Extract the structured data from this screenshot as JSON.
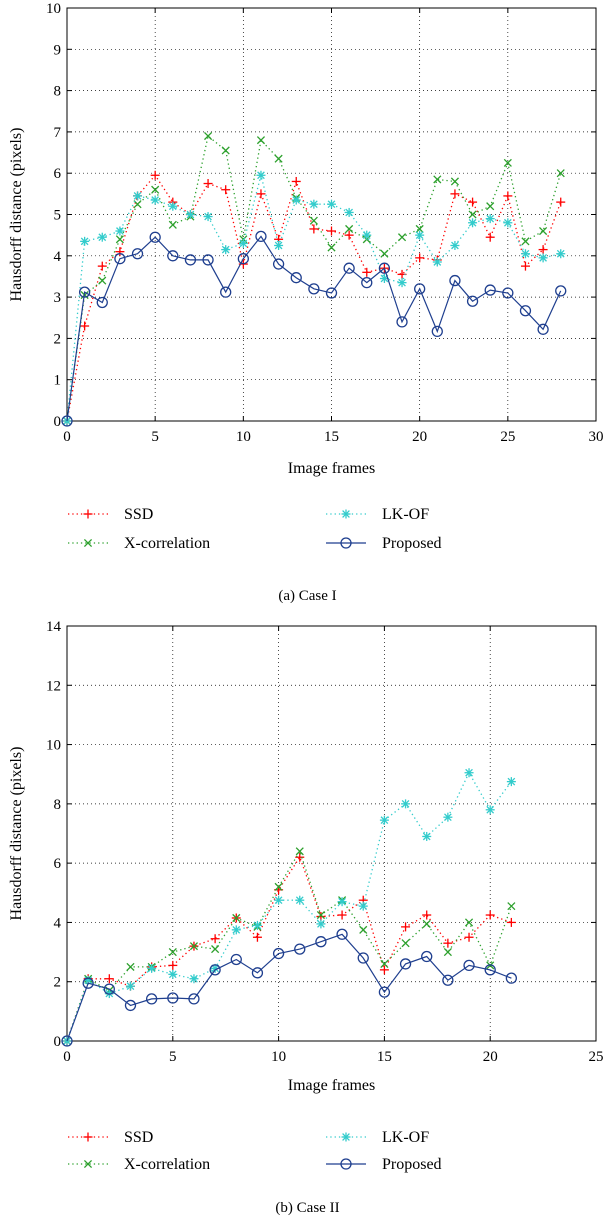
{
  "chart_data": [
    {
      "type": "line",
      "caption": "(a)  Case I",
      "xlabel": "Image frames",
      "ylabel": "Hausdorff distance (pixels)",
      "xlim": [
        0,
        30
      ],
      "ylim": [
        0,
        10
      ],
      "xticks": [
        0,
        5,
        10,
        15,
        20,
        25,
        30
      ],
      "yticks": [
        0,
        1,
        2,
        3,
        4,
        5,
        6,
        7,
        8,
        9,
        10
      ],
      "grid": true,
      "legend_position": "bottom",
      "x": [
        0,
        1,
        2,
        3,
        4,
        5,
        6,
        7,
        8,
        9,
        10,
        11,
        12,
        13,
        14,
        15,
        16,
        17,
        18,
        19,
        20,
        21,
        22,
        23,
        24,
        25,
        26,
        27,
        28
      ],
      "series": [
        {
          "name": "SSD",
          "color": "#ff0000",
          "marker": "plus",
          "line": "dotted",
          "values": [
            0,
            2.3,
            3.75,
            4.1,
            5.45,
            5.95,
            5.3,
            5.0,
            5.75,
            5.6,
            3.8,
            5.5,
            4.4,
            5.8,
            4.65,
            4.6,
            4.5,
            3.6,
            3.7,
            3.55,
            3.95,
            3.9,
            5.5,
            5.3,
            4.45,
            5.45,
            3.75,
            4.15,
            5.3
          ]
        },
        {
          "name": "X-correlation",
          "color": "#2ca02c",
          "marker": "x",
          "line": "dotted",
          "values": [
            0,
            3.05,
            3.4,
            4.4,
            5.25,
            5.6,
            4.75,
            4.95,
            6.9,
            6.55,
            4.4,
            6.8,
            6.35,
            5.4,
            4.85,
            4.2,
            4.65,
            4.4,
            4.05,
            4.45,
            4.65,
            5.85,
            5.8,
            5.0,
            5.2,
            6.25,
            4.35,
            4.6,
            6.0
          ]
        },
        {
          "name": "LK-OF",
          "color": "#33cccc",
          "marker": "star",
          "line": "dotted",
          "values": [
            0,
            4.35,
            4.45,
            4.6,
            5.45,
            5.35,
            5.2,
            5.0,
            4.95,
            4.15,
            4.3,
            5.95,
            4.25,
            5.35,
            5.25,
            5.25,
            5.05,
            4.5,
            3.45,
            3.35,
            4.5,
            3.85,
            4.25,
            4.8,
            4.9,
            4.8,
            4.05,
            3.95,
            4.05
          ]
        },
        {
          "name": "Proposed",
          "color": "#1f3f8f",
          "marker": "circle",
          "line": "solid",
          "values": [
            0,
            3.12,
            2.87,
            3.93,
            4.05,
            4.45,
            4.0,
            3.9,
            3.9,
            3.12,
            3.93,
            4.47,
            3.8,
            3.47,
            3.2,
            3.1,
            3.7,
            3.35,
            3.7,
            2.4,
            3.2,
            2.17,
            3.4,
            2.9,
            3.17,
            3.1,
            2.67,
            2.22,
            3.15
          ]
        }
      ]
    },
    {
      "type": "line",
      "caption": "(b)  Case II",
      "xlabel": "Image frames",
      "ylabel": "Hausdorff distance (pixels)",
      "xlim": [
        0,
        25
      ],
      "ylim": [
        0,
        14
      ],
      "xticks": [
        0,
        5,
        10,
        15,
        20,
        25
      ],
      "yticks": [
        0,
        2,
        4,
        6,
        8,
        10,
        12,
        14
      ],
      "grid": true,
      "legend_position": "bottom",
      "x": [
        0,
        1,
        2,
        3,
        4,
        5,
        6,
        7,
        8,
        9,
        10,
        11,
        12,
        13,
        14,
        15,
        16,
        17,
        18,
        19,
        20,
        21
      ],
      "series": [
        {
          "name": "SSD",
          "color": "#ff0000",
          "marker": "plus",
          "line": "dotted",
          "values": [
            0,
            2.1,
            2.1,
            1.85,
            2.5,
            2.55,
            3.2,
            3.45,
            4.15,
            3.5,
            5.1,
            6.2,
            4.2,
            4.25,
            4.75,
            2.4,
            3.85,
            4.25,
            3.3,
            3.5,
            4.25,
            4.0
          ]
        },
        {
          "name": "X-correlation",
          "color": "#2ca02c",
          "marker": "x",
          "line": "dotted",
          "values": [
            0,
            2.1,
            1.7,
            2.5,
            2.5,
            3.0,
            3.2,
            3.1,
            4.15,
            3.85,
            5.2,
            6.4,
            4.25,
            4.75,
            3.75,
            2.6,
            3.3,
            3.95,
            3.0,
            4.0,
            2.55,
            4.55
          ]
        },
        {
          "name": "LK-OF",
          "color": "#33cccc",
          "marker": "star",
          "line": "dotted",
          "values": [
            0,
            2.05,
            1.6,
            1.85,
            2.45,
            2.25,
            2.1,
            2.45,
            3.75,
            3.9,
            4.75,
            4.75,
            3.95,
            4.7,
            4.55,
            7.45,
            8.0,
            6.9,
            7.55,
            9.05,
            7.8,
            8.75
          ]
        },
        {
          "name": "Proposed",
          "color": "#1f3f8f",
          "marker": "circle",
          "line": "solid",
          "values": [
            0,
            1.95,
            1.75,
            1.2,
            1.42,
            1.45,
            1.42,
            2.4,
            2.75,
            2.3,
            2.95,
            3.1,
            3.35,
            3.6,
            2.8,
            1.65,
            2.6,
            2.85,
            2.05,
            2.55,
            2.4,
            2.12
          ]
        }
      ]
    }
  ]
}
